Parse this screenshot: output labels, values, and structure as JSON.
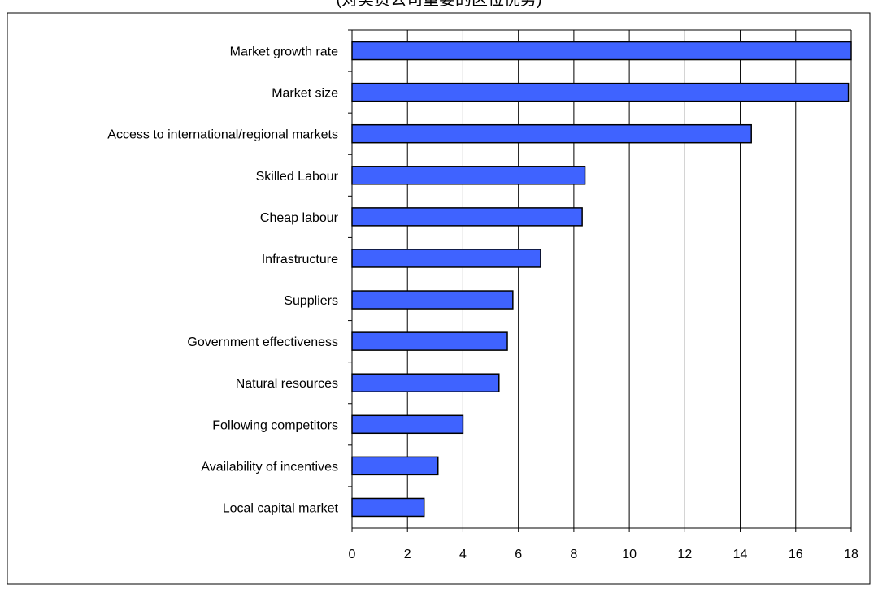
{
  "chart_data": {
    "type": "bar",
    "orientation": "horizontal",
    "top_caption": "(对美资公司重要的区位优势)",
    "categories": [
      "Market growth rate",
      "Market size",
      "Access to international/regional markets",
      "Skilled Labour",
      "Cheap labour",
      "Infrastructure",
      "Suppliers",
      "Government effectiveness",
      "Natural resources",
      "Following competitors",
      "Availability of incentives",
      "Local capital market"
    ],
    "values": [
      18.0,
      17.9,
      14.4,
      8.4,
      8.3,
      6.8,
      5.8,
      5.6,
      5.3,
      4.0,
      3.1,
      2.6
    ],
    "x_ticks": [
      "0",
      "2",
      "4",
      "6",
      "8",
      "10",
      "12",
      "14",
      "16",
      "18"
    ],
    "xlim": [
      0,
      18
    ],
    "grid": "vertical",
    "legend": "none",
    "bar_color": "#3f63ff",
    "bar_edge_color": "#000000"
  }
}
